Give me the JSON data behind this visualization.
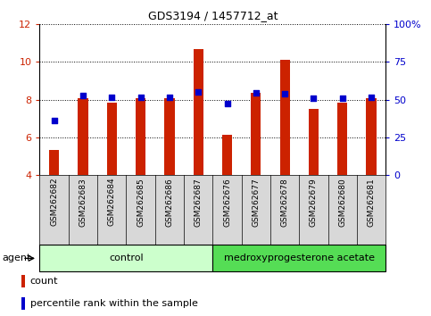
{
  "title": "GDS3194 / 1457712_at",
  "samples": [
    "GSM262682",
    "GSM262683",
    "GSM262684",
    "GSM262685",
    "GSM262686",
    "GSM262687",
    "GSM262676",
    "GSM262677",
    "GSM262678",
    "GSM262679",
    "GSM262680",
    "GSM262681"
  ],
  "count_values": [
    5.35,
    8.05,
    7.85,
    8.05,
    8.05,
    10.65,
    6.15,
    8.35,
    10.1,
    7.5,
    7.85,
    8.05
  ],
  "percentile_values": [
    6.9,
    8.2,
    8.1,
    8.1,
    8.1,
    8.4,
    7.8,
    8.35,
    8.3,
    8.05,
    8.05,
    8.1
  ],
  "ymin": 4,
  "ymax": 12,
  "yticks": [
    4,
    6,
    8,
    10,
    12
  ],
  "y2ticks": [
    0,
    25,
    50,
    75,
    100
  ],
  "y2labels": [
    "0",
    "25",
    "50",
    "75",
    "100%"
  ],
  "bar_color": "#cc2200",
  "dot_color": "#0000cc",
  "control_color": "#ccffcc",
  "treatment_color": "#55dd55",
  "n_control": 6,
  "n_treatment": 6,
  "control_label": "control",
  "treatment_label": "medroxyprogesterone acetate",
  "group_label": "agent",
  "legend_count": "count",
  "legend_percentile": "percentile rank within the sample",
  "bar_width": 0.35,
  "cell_color": "#d8d8d8",
  "spine_color": "#000000"
}
